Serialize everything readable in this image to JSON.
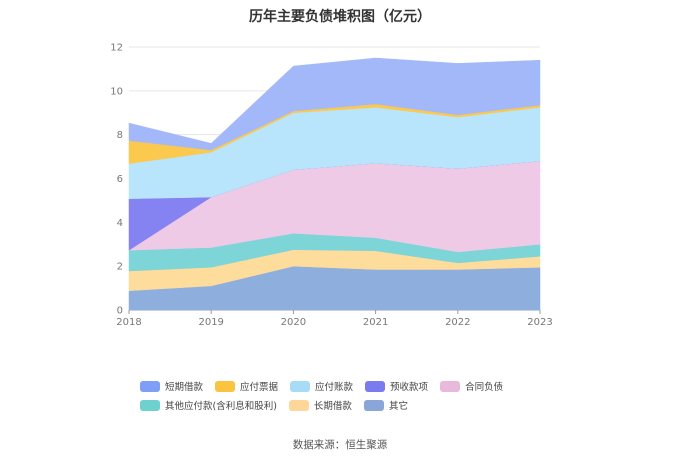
{
  "chart_data": {
    "type": "area",
    "stacked": true,
    "title": "历年主要负债堆积图（亿元）",
    "x": [
      "2018",
      "2019",
      "2020",
      "2021",
      "2022",
      "2023"
    ],
    "ylim": [
      0,
      12
    ],
    "yticks": [
      0,
      2,
      4,
      6,
      8,
      10,
      12
    ],
    "grid": true,
    "legend_position": "bottom",
    "series": [
      {
        "name": "其它",
        "color": "#8eaede",
        "values": [
          0.88,
          1.1,
          2.0,
          1.85,
          1.85,
          1.95
        ]
      },
      {
        "name": "长期借款",
        "color": "#fddc9c",
        "values": [
          0.9,
          0.85,
          0.75,
          0.85,
          0.3,
          0.5
        ]
      },
      {
        "name": "其他应付款(含利息和股利)",
        "color": "#7dd5d8",
        "values": [
          0.95,
          0.9,
          0.75,
          0.6,
          0.5,
          0.55
        ]
      },
      {
        "name": "合同负债",
        "color": "#eecae6",
        "values": [
          0.0,
          2.3,
          2.9,
          3.4,
          3.8,
          3.8
        ]
      },
      {
        "name": "预收款项",
        "color": "#8583f2",
        "values": [
          2.35,
          0.0,
          0.0,
          0.0,
          0.0,
          0.0
        ]
      },
      {
        "name": "应付账款",
        "color": "#b8e5fb",
        "values": [
          1.6,
          2.05,
          2.6,
          2.55,
          2.35,
          2.45
        ]
      },
      {
        "name": "应付票据",
        "color": "#fbc94e",
        "values": [
          1.05,
          0.1,
          0.08,
          0.15,
          0.1,
          0.1
        ]
      },
      {
        "name": "短期借款",
        "color": "#a3b8f8",
        "values": [
          0.8,
          0.3,
          2.05,
          2.1,
          2.35,
          2.05
        ]
      }
    ],
    "legend_order": [
      "短期借款",
      "应付票据",
      "应付账款",
      "预收款项",
      "合同负债",
      "其他应付款(含利息和股利)",
      "长期借款",
      "其它"
    ],
    "legend_colors": {
      "短期借款": "#7f9ef5",
      "应付票据": "#fbc440",
      "应付账款": "#a7dcf7",
      "预收款项": "#7b7bf0",
      "合同负债": "#e9b9dc",
      "其他应付款(含利息和股利)": "#6fd0d0",
      "长期借款": "#fdd79a",
      "其它": "#8aa6d8"
    }
  },
  "source": "数据来源：恒生聚源"
}
